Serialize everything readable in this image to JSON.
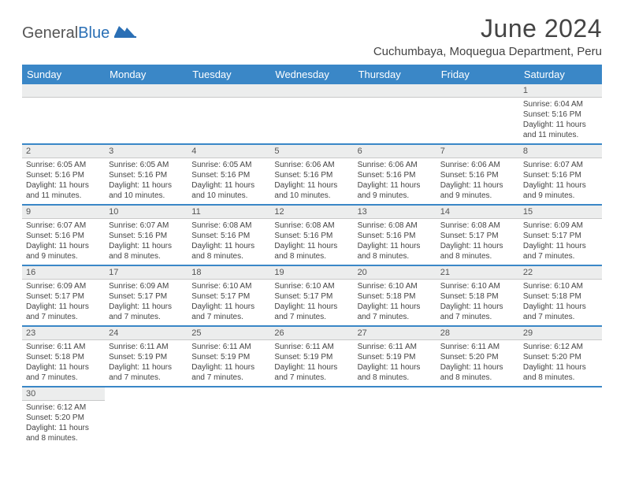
{
  "logo": {
    "part1": "General",
    "part2": "Blue"
  },
  "title": "June 2024",
  "location": "Cuchumbaya, Moquegua Department, Peru",
  "colors": {
    "header_bg": "#3a87c7",
    "header_text": "#ffffff",
    "daynum_bg": "#eceded",
    "row_border": "#3a87c7",
    "logo_accent": "#2a6fb5"
  },
  "weekdays": [
    "Sunday",
    "Monday",
    "Tuesday",
    "Wednesday",
    "Thursday",
    "Friday",
    "Saturday"
  ],
  "weeks": [
    [
      null,
      null,
      null,
      null,
      null,
      null,
      {
        "n": "1",
        "sr": "Sunrise: 6:04 AM",
        "ss": "Sunset: 5:16 PM",
        "d1": "Daylight: 11 hours",
        "d2": "and 11 minutes."
      }
    ],
    [
      {
        "n": "2",
        "sr": "Sunrise: 6:05 AM",
        "ss": "Sunset: 5:16 PM",
        "d1": "Daylight: 11 hours",
        "d2": "and 11 minutes."
      },
      {
        "n": "3",
        "sr": "Sunrise: 6:05 AM",
        "ss": "Sunset: 5:16 PM",
        "d1": "Daylight: 11 hours",
        "d2": "and 10 minutes."
      },
      {
        "n": "4",
        "sr": "Sunrise: 6:05 AM",
        "ss": "Sunset: 5:16 PM",
        "d1": "Daylight: 11 hours",
        "d2": "and 10 minutes."
      },
      {
        "n": "5",
        "sr": "Sunrise: 6:06 AM",
        "ss": "Sunset: 5:16 PM",
        "d1": "Daylight: 11 hours",
        "d2": "and 10 minutes."
      },
      {
        "n": "6",
        "sr": "Sunrise: 6:06 AM",
        "ss": "Sunset: 5:16 PM",
        "d1": "Daylight: 11 hours",
        "d2": "and 9 minutes."
      },
      {
        "n": "7",
        "sr": "Sunrise: 6:06 AM",
        "ss": "Sunset: 5:16 PM",
        "d1": "Daylight: 11 hours",
        "d2": "and 9 minutes."
      },
      {
        "n": "8",
        "sr": "Sunrise: 6:07 AM",
        "ss": "Sunset: 5:16 PM",
        "d1": "Daylight: 11 hours",
        "d2": "and 9 minutes."
      }
    ],
    [
      {
        "n": "9",
        "sr": "Sunrise: 6:07 AM",
        "ss": "Sunset: 5:16 PM",
        "d1": "Daylight: 11 hours",
        "d2": "and 9 minutes."
      },
      {
        "n": "10",
        "sr": "Sunrise: 6:07 AM",
        "ss": "Sunset: 5:16 PM",
        "d1": "Daylight: 11 hours",
        "d2": "and 8 minutes."
      },
      {
        "n": "11",
        "sr": "Sunrise: 6:08 AM",
        "ss": "Sunset: 5:16 PM",
        "d1": "Daylight: 11 hours",
        "d2": "and 8 minutes."
      },
      {
        "n": "12",
        "sr": "Sunrise: 6:08 AM",
        "ss": "Sunset: 5:16 PM",
        "d1": "Daylight: 11 hours",
        "d2": "and 8 minutes."
      },
      {
        "n": "13",
        "sr": "Sunrise: 6:08 AM",
        "ss": "Sunset: 5:16 PM",
        "d1": "Daylight: 11 hours",
        "d2": "and 8 minutes."
      },
      {
        "n": "14",
        "sr": "Sunrise: 6:08 AM",
        "ss": "Sunset: 5:17 PM",
        "d1": "Daylight: 11 hours",
        "d2": "and 8 minutes."
      },
      {
        "n": "15",
        "sr": "Sunrise: 6:09 AM",
        "ss": "Sunset: 5:17 PM",
        "d1": "Daylight: 11 hours",
        "d2": "and 7 minutes."
      }
    ],
    [
      {
        "n": "16",
        "sr": "Sunrise: 6:09 AM",
        "ss": "Sunset: 5:17 PM",
        "d1": "Daylight: 11 hours",
        "d2": "and 7 minutes."
      },
      {
        "n": "17",
        "sr": "Sunrise: 6:09 AM",
        "ss": "Sunset: 5:17 PM",
        "d1": "Daylight: 11 hours",
        "d2": "and 7 minutes."
      },
      {
        "n": "18",
        "sr": "Sunrise: 6:10 AM",
        "ss": "Sunset: 5:17 PM",
        "d1": "Daylight: 11 hours",
        "d2": "and 7 minutes."
      },
      {
        "n": "19",
        "sr": "Sunrise: 6:10 AM",
        "ss": "Sunset: 5:17 PM",
        "d1": "Daylight: 11 hours",
        "d2": "and 7 minutes."
      },
      {
        "n": "20",
        "sr": "Sunrise: 6:10 AM",
        "ss": "Sunset: 5:18 PM",
        "d1": "Daylight: 11 hours",
        "d2": "and 7 minutes."
      },
      {
        "n": "21",
        "sr": "Sunrise: 6:10 AM",
        "ss": "Sunset: 5:18 PM",
        "d1": "Daylight: 11 hours",
        "d2": "and 7 minutes."
      },
      {
        "n": "22",
        "sr": "Sunrise: 6:10 AM",
        "ss": "Sunset: 5:18 PM",
        "d1": "Daylight: 11 hours",
        "d2": "and 7 minutes."
      }
    ],
    [
      {
        "n": "23",
        "sr": "Sunrise: 6:11 AM",
        "ss": "Sunset: 5:18 PM",
        "d1": "Daylight: 11 hours",
        "d2": "and 7 minutes."
      },
      {
        "n": "24",
        "sr": "Sunrise: 6:11 AM",
        "ss": "Sunset: 5:19 PM",
        "d1": "Daylight: 11 hours",
        "d2": "and 7 minutes."
      },
      {
        "n": "25",
        "sr": "Sunrise: 6:11 AM",
        "ss": "Sunset: 5:19 PM",
        "d1": "Daylight: 11 hours",
        "d2": "and 7 minutes."
      },
      {
        "n": "26",
        "sr": "Sunrise: 6:11 AM",
        "ss": "Sunset: 5:19 PM",
        "d1": "Daylight: 11 hours",
        "d2": "and 7 minutes."
      },
      {
        "n": "27",
        "sr": "Sunrise: 6:11 AM",
        "ss": "Sunset: 5:19 PM",
        "d1": "Daylight: 11 hours",
        "d2": "and 8 minutes."
      },
      {
        "n": "28",
        "sr": "Sunrise: 6:11 AM",
        "ss": "Sunset: 5:20 PM",
        "d1": "Daylight: 11 hours",
        "d2": "and 8 minutes."
      },
      {
        "n": "29",
        "sr": "Sunrise: 6:12 AM",
        "ss": "Sunset: 5:20 PM",
        "d1": "Daylight: 11 hours",
        "d2": "and 8 minutes."
      }
    ],
    [
      {
        "n": "30",
        "sr": "Sunrise: 6:12 AM",
        "ss": "Sunset: 5:20 PM",
        "d1": "Daylight: 11 hours",
        "d2": "and 8 minutes."
      },
      null,
      null,
      null,
      null,
      null,
      null
    ]
  ]
}
